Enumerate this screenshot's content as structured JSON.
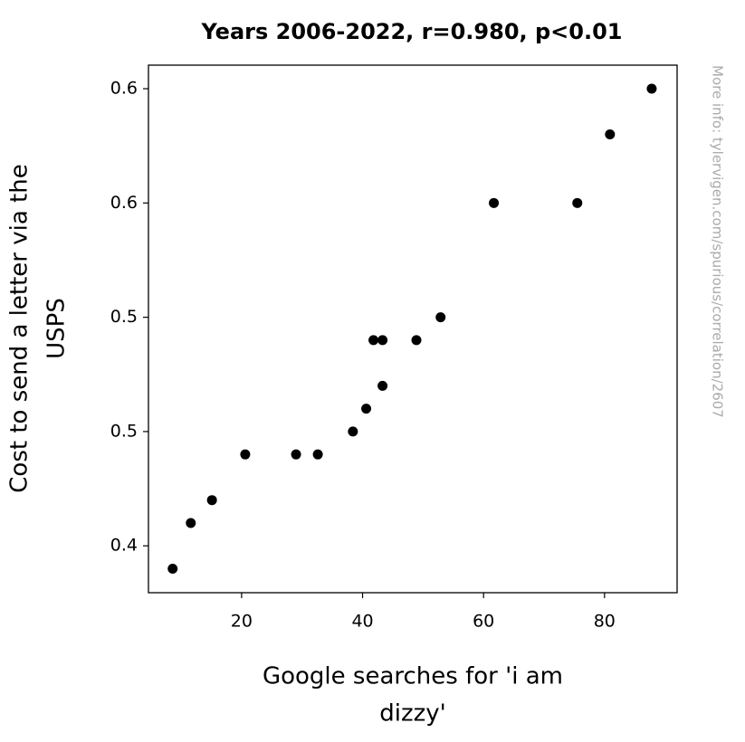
{
  "chart_data": {
    "type": "scatter",
    "title": "Years 2006-2022, r=0.980, p<0.01",
    "x_label": [
      "Google searches for 'i am",
      "dizzy'"
    ],
    "y_label": [
      "Cost to send a letter via the",
      "USPS"
    ],
    "watermark": "More info: tylervigen.com/spurious/correlation/2607",
    "color": "#000000",
    "x": [
      8.6,
      11.6,
      15.1,
      20.6,
      29.0,
      32.6,
      38.4,
      40.6,
      41.8,
      43.3,
      43.3,
      48.9,
      52.9,
      61.7,
      75.5,
      80.9,
      87.8
    ],
    "y": [
      0.39,
      0.41,
      0.42,
      0.44,
      0.44,
      0.44,
      0.45,
      0.46,
      0.49,
      0.49,
      0.47,
      0.49,
      0.5,
      0.55,
      0.55,
      0.58,
      0.6
    ],
    "xlim": [
      4.6,
      92.0
    ],
    "ylim": [
      0.3795,
      0.6103
    ],
    "xticks": [
      20,
      40,
      60,
      80
    ],
    "yticks": [
      0.4,
      {
        "value": 0.45,
        "label": "0.5"
      },
      0.5,
      {
        "value": 0.55,
        "label": "0.6"
      },
      0.6
    ]
  }
}
